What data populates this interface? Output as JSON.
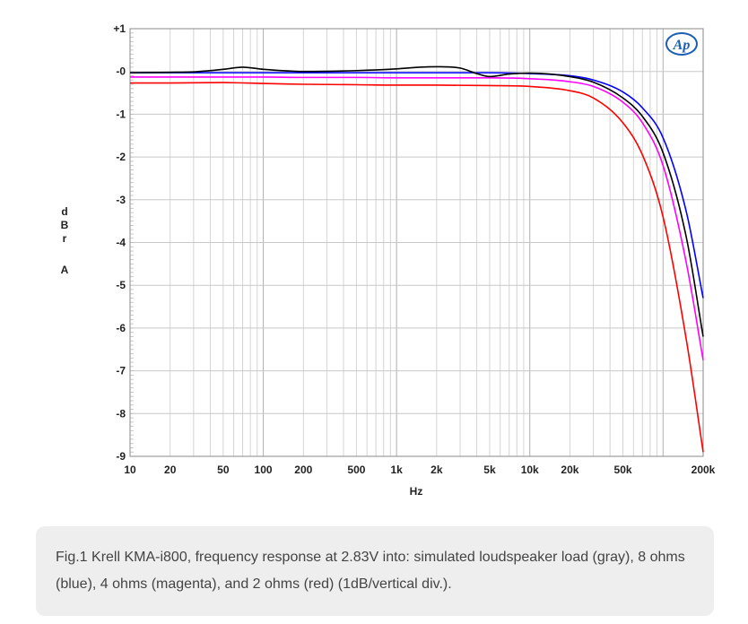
{
  "caption": "Fig.1 Krell KMA-i800, frequency response at 2.83V into: simulated loudspeaker load (gray), 8 ohms (blue), 4 ohms (magenta), and 2 ohms (red) (1dB/vertical div.).",
  "logo_text": "Ap",
  "chart_data": {
    "type": "line",
    "xlabel": "Hz",
    "ylabel": "dBr A",
    "x_scale": "log",
    "xlim": [
      10,
      200000
    ],
    "ylim": [
      -9,
      1
    ],
    "grid": true,
    "x_ticks": [
      {
        "value": 10,
        "label": "10"
      },
      {
        "value": 20,
        "label": "20"
      },
      {
        "value": 50,
        "label": "50"
      },
      {
        "value": 100,
        "label": "100"
      },
      {
        "value": 200,
        "label": "200"
      },
      {
        "value": 500,
        "label": "500"
      },
      {
        "value": 1000,
        "label": "1k"
      },
      {
        "value": 2000,
        "label": "2k"
      },
      {
        "value": 5000,
        "label": "5k"
      },
      {
        "value": 10000,
        "label": "10k"
      },
      {
        "value": 20000,
        "label": "20k"
      },
      {
        "value": 50000,
        "label": "50k"
      },
      {
        "value": 200000,
        "label": "200k"
      }
    ],
    "y_ticks": [
      {
        "value": 1,
        "label": "+1"
      },
      {
        "value": 0,
        "label": "-0"
      },
      {
        "value": -1,
        "label": "-1"
      },
      {
        "value": -2,
        "label": "-2"
      },
      {
        "value": -3,
        "label": "-3"
      },
      {
        "value": -4,
        "label": "-4"
      },
      {
        "value": -5,
        "label": "-5"
      },
      {
        "value": -6,
        "label": "-6"
      },
      {
        "value": -7,
        "label": "-7"
      },
      {
        "value": -8,
        "label": "-8"
      },
      {
        "value": -9,
        "label": "-9"
      }
    ],
    "series": [
      {
        "color": "#ff0000",
        "x": [
          10,
          20,
          50,
          100,
          200,
          500,
          1000,
          2000,
          5000,
          10000,
          20000,
          30000,
          50000,
          70000,
          100000,
          150000,
          200000
        ],
        "y": [
          -0.27,
          -0.27,
          -0.26,
          -0.28,
          -0.3,
          -0.31,
          -0.32,
          -0.32,
          -0.33,
          -0.35,
          -0.45,
          -0.62,
          -1.2,
          -1.95,
          -3.4,
          -6.3,
          -8.9
        ]
      },
      {
        "color": "#ff00ff",
        "x": [
          10,
          20,
          50,
          100,
          200,
          500,
          1000,
          2000,
          5000,
          10000,
          20000,
          30000,
          50000,
          70000,
          100000,
          150000,
          200000
        ],
        "y": [
          -0.13,
          -0.13,
          -0.13,
          -0.13,
          -0.14,
          -0.14,
          -0.15,
          -0.15,
          -0.15,
          -0.17,
          -0.24,
          -0.35,
          -0.72,
          -1.2,
          -2.2,
          -4.5,
          -6.75
        ]
      },
      {
        "color": "#0000ff",
        "x": [
          10,
          20,
          50,
          100,
          200,
          500,
          1000,
          2000,
          5000,
          10000,
          20000,
          30000,
          50000,
          70000,
          100000,
          150000,
          200000
        ],
        "y": [
          -0.03,
          -0.03,
          -0.03,
          -0.03,
          -0.03,
          -0.03,
          -0.03,
          -0.03,
          -0.03,
          -0.05,
          -0.1,
          -0.2,
          -0.48,
          -0.85,
          -1.55,
          -3.3,
          -5.3
        ]
      },
      {
        "color": "#000000",
        "x": [
          10,
          20,
          30,
          50,
          70,
          100,
          200,
          500,
          1000,
          1500,
          2000,
          3000,
          4000,
          5000,
          7000,
          10000,
          20000,
          30000,
          50000,
          70000,
          100000,
          150000,
          200000
        ],
        "y": [
          -0.03,
          -0.02,
          -0.01,
          0.05,
          0.1,
          0.05,
          0.0,
          0.02,
          0.06,
          0.1,
          0.11,
          0.08,
          -0.05,
          -0.12,
          -0.06,
          -0.04,
          -0.12,
          -0.25,
          -0.62,
          -1.05,
          -1.9,
          -3.9,
          -6.2
        ]
      }
    ]
  }
}
